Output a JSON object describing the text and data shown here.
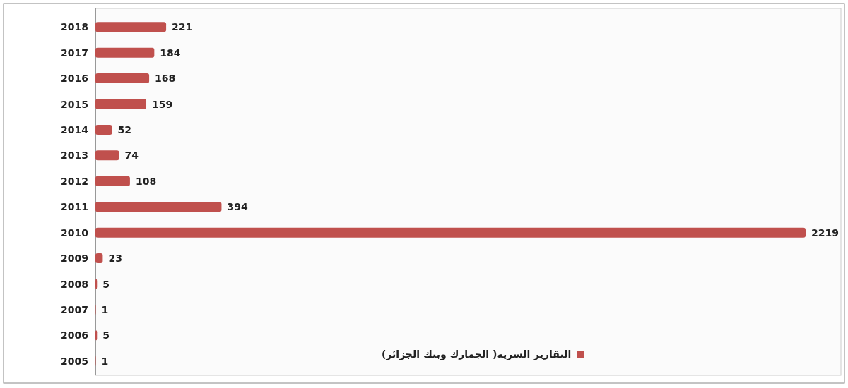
{
  "chart_data": {
    "type": "bar",
    "orientation": "horizontal",
    "categories": [
      "2018",
      "2017",
      "2016",
      "2015",
      "2014",
      "2013",
      "2012",
      "2011",
      "2010",
      "2009",
      "2008",
      "2007",
      "2006",
      "2005"
    ],
    "series": [
      {
        "name": "التقارير السرية( الجمارك وبنك الجزائر)",
        "color": "#c0504d",
        "values": [
          221,
          184,
          168,
          159,
          52,
          74,
          108,
          394,
          2219,
          23,
          5,
          1,
          5,
          1
        ]
      }
    ],
    "data_labels": true,
    "legend": "bottom"
  }
}
